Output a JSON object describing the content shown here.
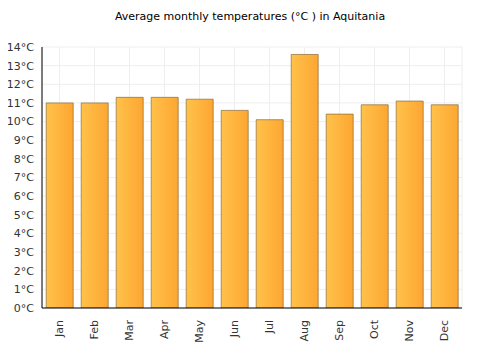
{
  "chart_data": {
    "type": "bar",
    "title": "Average monthly temperatures (°C ) in Aquitania",
    "categories": [
      "Jan",
      "Feb",
      "Mar",
      "Apr",
      "May",
      "Jun",
      "Jul",
      "Aug",
      "Sep",
      "Oct",
      "Nov",
      "Dec"
    ],
    "values": [
      11.0,
      11.0,
      11.3,
      11.3,
      11.2,
      10.6,
      10.1,
      13.6,
      10.4,
      10.9,
      11.1,
      10.9
    ],
    "color": "#fda632",
    "ylim": [
      0,
      14
    ],
    "yticks": [
      {
        "value": 0,
        "label": "0°C"
      },
      {
        "value": 1,
        "label": "1°C"
      },
      {
        "value": 2,
        "label": "2°C"
      },
      {
        "value": 3,
        "label": "3°C"
      },
      {
        "value": 4,
        "label": "4°C"
      },
      {
        "value": 5,
        "label": "5°C"
      },
      {
        "value": 6,
        "label": "6°C"
      },
      {
        "value": 7,
        "label": "7°C"
      },
      {
        "value": 8,
        "label": "8°C"
      },
      {
        "value": 9,
        "label": "9°C"
      },
      {
        "value": 10,
        "label": "10°C"
      },
      {
        "value": 11,
        "label": "11°C"
      },
      {
        "value": 12,
        "label": "12°C"
      },
      {
        "value": 13,
        "label": "13°C"
      },
      {
        "value": 14,
        "label": "14°C"
      }
    ],
    "grid": true
  }
}
